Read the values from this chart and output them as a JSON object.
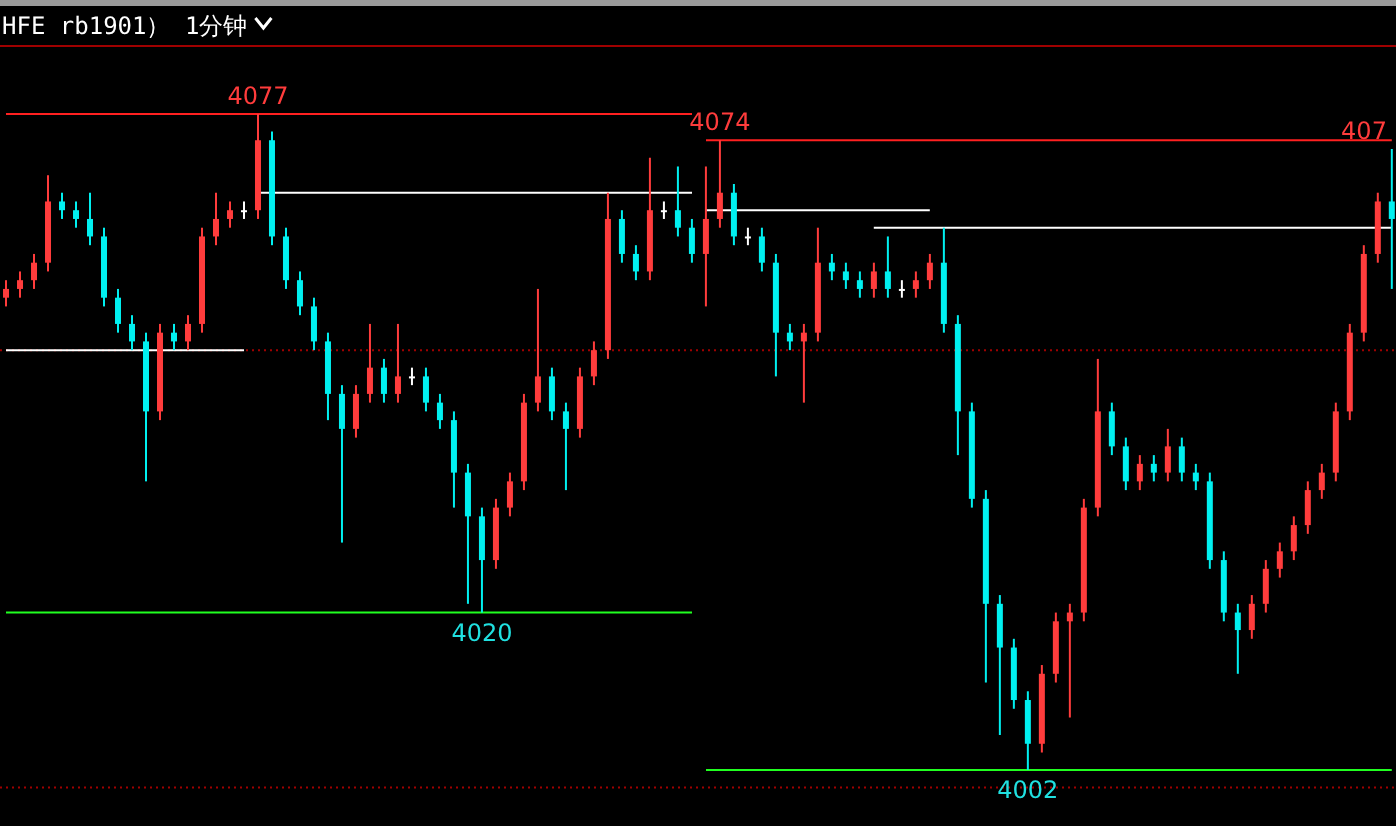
{
  "chart_data": {
    "type": "candlestick",
    "title": "HFE rb1901） 1分钟",
    "categories": [
      null,
      null,
      null,
      null,
      null,
      null,
      null,
      null,
      null,
      null,
      null,
      null,
      null,
      null,
      null,
      null,
      null,
      null,
      null,
      null,
      null,
      null,
      null,
      null,
      null,
      null,
      null,
      null,
      null,
      null,
      null,
      null,
      null,
      null,
      null,
      null,
      null,
      null,
      null,
      null,
      null,
      null,
      null,
      null,
      null,
      null,
      null,
      null,
      null,
      null,
      null,
      null,
      null,
      null,
      null,
      null,
      null,
      null,
      null,
      null,
      null,
      null,
      null,
      null,
      null,
      null,
      null,
      null,
      null,
      null,
      null,
      null,
      null,
      null,
      null,
      null,
      null,
      null,
      null,
      null,
      null,
      null,
      null,
      null,
      null,
      null,
      null,
      null,
      null,
      null,
      null,
      null,
      null,
      null,
      null,
      null,
      null,
      null,
      null,
      null
    ],
    "ohlc": [
      [
        4056,
        4058,
        4055,
        4057
      ],
      [
        4057,
        4059,
        4056,
        4058
      ],
      [
        4058,
        4061,
        4057,
        4060
      ],
      [
        4060,
        4070,
        4059,
        4067
      ],
      [
        4067,
        4068,
        4065,
        4066
      ],
      [
        4066,
        4067,
        4064,
        4065
      ],
      [
        4065,
        4068,
        4062,
        4063
      ],
      [
        4063,
        4064,
        4055,
        4056
      ],
      [
        4056,
        4057,
        4052,
        4053
      ],
      [
        4053,
        4054,
        4050,
        4051
      ],
      [
        4051,
        4052,
        4035,
        4043
      ],
      [
        4043,
        4053,
        4042,
        4052
      ],
      [
        4052,
        4053,
        4050,
        4051
      ],
      [
        4051,
        4054,
        4050,
        4053
      ],
      [
        4053,
        4064,
        4052,
        4063
      ],
      [
        4063,
        4068,
        4062,
        4065
      ],
      [
        4065,
        4067,
        4064,
        4066
      ],
      [
        4066,
        4067,
        4065,
        4066
      ],
      [
        4066,
        4077,
        4065,
        4074
      ],
      [
        4074,
        4075,
        4062,
        4063
      ],
      [
        4063,
        4064,
        4057,
        4058
      ],
      [
        4058,
        4059,
        4054,
        4055
      ],
      [
        4055,
        4056,
        4050,
        4051
      ],
      [
        4051,
        4052,
        4042,
        4045
      ],
      [
        4045,
        4046,
        4028,
        4041
      ],
      [
        4041,
        4046,
        4040,
        4045
      ],
      [
        4045,
        4053,
        4044,
        4048
      ],
      [
        4048,
        4049,
        4044,
        4045
      ],
      [
        4045,
        4053,
        4044,
        4047
      ],
      [
        4047,
        4048,
        4046,
        4047
      ],
      [
        4047,
        4048,
        4043,
        4044
      ],
      [
        4044,
        4045,
        4041,
        4042
      ],
      [
        4042,
        4043,
        4032,
        4036
      ],
      [
        4036,
        4037,
        4021,
        4031
      ],
      [
        4031,
        4032,
        4020,
        4026
      ],
      [
        4026,
        4033,
        4025,
        4032
      ],
      [
        4032,
        4036,
        4031,
        4035
      ],
      [
        4035,
        4045,
        4034,
        4044
      ],
      [
        4044,
        4057,
        4043,
        4047
      ],
      [
        4047,
        4048,
        4042,
        4043
      ],
      [
        4043,
        4044,
        4034,
        4041
      ],
      [
        4041,
        4048,
        4040,
        4047
      ],
      [
        4047,
        4051,
        4046,
        4050
      ],
      [
        4050,
        4068,
        4049,
        4065
      ],
      [
        4065,
        4066,
        4060,
        4061
      ],
      [
        4061,
        4062,
        4058,
        4059
      ],
      [
        4059,
        4072,
        4058,
        4066
      ],
      [
        4066,
        4067,
        4065,
        4066
      ],
      [
        4066,
        4071,
        4063,
        4064
      ],
      [
        4064,
        4065,
        4060,
        4061
      ],
      [
        4061,
        4071,
        4055,
        4065
      ],
      [
        4065,
        4074,
        4064,
        4068
      ],
      [
        4068,
        4069,
        4062,
        4063
      ],
      [
        4063,
        4064,
        4062,
        4063
      ],
      [
        4063,
        4064,
        4059,
        4060
      ],
      [
        4060,
        4061,
        4047,
        4052
      ],
      [
        4052,
        4053,
        4050,
        4051
      ],
      [
        4051,
        4053,
        4044,
        4052
      ],
      [
        4052,
        4064,
        4051,
        4060
      ],
      [
        4060,
        4061,
        4058,
        4059
      ],
      [
        4059,
        4060,
        4057,
        4058
      ],
      [
        4058,
        4059,
        4056,
        4057
      ],
      [
        4057,
        4060,
        4056,
        4059
      ],
      [
        4059,
        4063,
        4056,
        4057
      ],
      [
        4057,
        4058,
        4056,
        4057
      ],
      [
        4057,
        4059,
        4056,
        4058
      ],
      [
        4058,
        4061,
        4057,
        4060
      ],
      [
        4060,
        4064,
        4052,
        4053
      ],
      [
        4053,
        4054,
        4038,
        4043
      ],
      [
        4043,
        4044,
        4032,
        4033
      ],
      [
        4033,
        4034,
        4012,
        4021
      ],
      [
        4021,
        4022,
        4006,
        4016
      ],
      [
        4016,
        4017,
        4009,
        4010
      ],
      [
        4010,
        4011,
        4002,
        4005
      ],
      [
        4005,
        4014,
        4004,
        4013
      ],
      [
        4013,
        4020,
        4012,
        4019
      ],
      [
        4019,
        4021,
        4008,
        4020
      ],
      [
        4020,
        4033,
        4019,
        4032
      ],
      [
        4032,
        4049,
        4031,
        4043
      ],
      [
        4043,
        4044,
        4038,
        4039
      ],
      [
        4039,
        4040,
        4034,
        4035
      ],
      [
        4035,
        4038,
        4034,
        4037
      ],
      [
        4037,
        4038,
        4035,
        4036
      ],
      [
        4036,
        4041,
        4035,
        4039
      ],
      [
        4039,
        4040,
        4035,
        4036
      ],
      [
        4036,
        4037,
        4034,
        4035
      ],
      [
        4035,
        4036,
        4025,
        4026
      ],
      [
        4026,
        4027,
        4019,
        4020
      ],
      [
        4020,
        4021,
        4013,
        4018
      ],
      [
        4018,
        4022,
        4017,
        4021
      ],
      [
        4021,
        4026,
        4020,
        4025
      ],
      [
        4025,
        4028,
        4024,
        4027
      ],
      [
        4027,
        4031,
        4026,
        4030
      ],
      [
        4030,
        4035,
        4029,
        4034
      ],
      [
        4034,
        4037,
        4033,
        4036
      ],
      [
        4036,
        4044,
        4035,
        4043
      ],
      [
        4043,
        4053,
        4042,
        4052
      ],
      [
        4052,
        4062,
        4051,
        4061
      ],
      [
        4061,
        4068,
        4060,
        4067
      ],
      [
        4067,
        4073,
        4057,
        4065
      ]
    ],
    "series": [
      {
        "type": "line",
        "color": "#ff2020",
        "values": [
          4077,
          4077,
          4077,
          4077,
          4077,
          4077,
          4077,
          4077,
          4077,
          4077,
          4077,
          4077,
          4077,
          4077,
          4077,
          4077,
          4077,
          4077,
          4077,
          4077,
          4077,
          4077,
          4077,
          4077,
          4077,
          4077,
          4077,
          4077,
          4077,
          4077,
          4077,
          4077,
          4077,
          4077,
          4077,
          4077,
          4077,
          4077,
          4077,
          4077,
          4077,
          4077,
          4077,
          4077,
          4077,
          4077,
          4077,
          4077,
          4077,
          4077,
          null,
          null,
          null,
          null,
          null,
          null,
          null,
          null,
          null,
          null,
          null,
          null,
          null,
          null,
          null,
          null,
          null,
          null,
          null,
          null,
          null,
          null,
          null,
          null,
          null,
          null,
          null,
          null,
          null,
          null,
          null,
          null,
          null,
          null,
          null,
          null,
          null,
          null,
          null,
          null,
          null,
          null,
          null,
          null,
          null,
          null,
          null,
          null,
          null,
          null
        ]
      },
      {
        "type": "line",
        "color": "#ff2020",
        "values": [
          null,
          null,
          null,
          null,
          null,
          null,
          null,
          null,
          null,
          null,
          null,
          null,
          null,
          null,
          null,
          null,
          null,
          null,
          null,
          null,
          null,
          null,
          null,
          null,
          null,
          null,
          null,
          null,
          null,
          null,
          null,
          null,
          null,
          null,
          null,
          null,
          null,
          null,
          null,
          null,
          null,
          null,
          null,
          null,
          null,
          null,
          null,
          null,
          null,
          null,
          4074,
          4074,
          4074,
          4074,
          4074,
          4074,
          4074,
          4074,
          4074,
          4074,
          4074,
          4074,
          4074,
          4074,
          4074,
          4074,
          4074,
          4074,
          4074,
          4074,
          4074,
          4074,
          4074,
          4074,
          4074,
          4074,
          4074,
          4074,
          4074,
          4074,
          4074,
          4074,
          4074,
          4074,
          4074,
          4074,
          4074,
          4074,
          4074,
          4074,
          4074,
          4074,
          4074,
          4074,
          4074,
          4074,
          4074,
          4074,
          4074,
          4074
        ]
      },
      {
        "type": "line",
        "color": "#20ff20",
        "values": [
          4020,
          4020,
          4020,
          4020,
          4020,
          4020,
          4020,
          4020,
          4020,
          4020,
          4020,
          4020,
          4020,
          4020,
          4020,
          4020,
          4020,
          4020,
          4020,
          4020,
          4020,
          4020,
          4020,
          4020,
          4020,
          4020,
          4020,
          4020,
          4020,
          4020,
          4020,
          4020,
          4020,
          4020,
          4020,
          4020,
          4020,
          4020,
          4020,
          4020,
          4020,
          4020,
          4020,
          4020,
          4020,
          4020,
          4020,
          4020,
          4020,
          4020,
          null,
          null,
          null,
          null,
          null,
          null,
          null,
          null,
          null,
          null,
          null,
          null,
          null,
          null,
          null,
          null,
          null,
          null,
          null,
          null,
          null,
          null,
          null,
          null,
          null,
          null,
          null,
          null,
          null,
          null,
          null,
          null,
          null,
          null,
          null,
          null,
          null,
          null,
          null,
          null,
          null,
          null,
          null,
          null,
          null,
          null,
          null,
          null,
          null,
          null
        ]
      },
      {
        "type": "line",
        "color": "#20ff20",
        "values": [
          null,
          null,
          null,
          null,
          null,
          null,
          null,
          null,
          null,
          null,
          null,
          null,
          null,
          null,
          null,
          null,
          null,
          null,
          null,
          null,
          null,
          null,
          null,
          null,
          null,
          null,
          null,
          null,
          null,
          null,
          null,
          null,
          null,
          null,
          null,
          null,
          null,
          null,
          null,
          null,
          null,
          null,
          null,
          null,
          null,
          null,
          null,
          null,
          null,
          null,
          4002,
          4002,
          4002,
          4002,
          4002,
          4002,
          4002,
          4002,
          4002,
          4002,
          4002,
          4002,
          4002,
          4002,
          4002,
          4002,
          4002,
          4002,
          4002,
          4002,
          4002,
          4002,
          4002,
          4002,
          4002,
          4002,
          4002,
          4002,
          4002,
          4002,
          4002,
          4002,
          4002,
          4002,
          4002,
          4002,
          4002,
          4002,
          4002,
          4002,
          4002,
          4002,
          4002,
          4002,
          4002,
          4002,
          4002,
          4002,
          4002,
          4002
        ]
      },
      {
        "type": "line",
        "color": "#ffffff",
        "values": [
          4050,
          4050,
          4050,
          4050,
          4050,
          4050,
          4050,
          4050,
          4050,
          4050,
          4050,
          4050,
          4050,
          4050,
          4050,
          4050,
          4050,
          4050,
          null,
          null,
          null,
          null,
          null,
          null,
          null,
          null,
          null,
          null,
          null,
          null,
          null,
          null,
          null,
          null,
          null,
          null,
          null,
          null,
          null,
          null,
          null,
          null,
          null,
          null,
          null,
          null,
          null,
          null,
          null,
          null,
          null,
          null,
          null,
          null,
          null,
          null,
          null,
          null,
          null,
          null,
          null,
          null,
          null,
          null,
          null,
          null,
          null,
          null,
          null,
          null,
          null,
          null,
          null,
          null,
          null,
          null,
          null,
          null,
          null,
          null,
          null,
          null,
          null,
          null,
          null,
          null,
          null,
          null,
          null,
          null,
          null,
          null,
          null,
          null,
          null,
          null,
          null,
          null,
          null,
          null
        ]
      },
      {
        "type": "line",
        "color": "#ffffff",
        "values": [
          null,
          null,
          null,
          null,
          null,
          null,
          null,
          null,
          null,
          null,
          null,
          null,
          null,
          null,
          null,
          null,
          null,
          null,
          4068,
          4068,
          4068,
          4068,
          4068,
          4068,
          4068,
          4068,
          4068,
          4068,
          4068,
          4068,
          4068,
          4068,
          4068,
          4068,
          4068,
          4068,
          4068,
          4068,
          4068,
          4068,
          4068,
          4068,
          4068,
          4068,
          4068,
          4068,
          4068,
          4068,
          4068,
          4068,
          null,
          null,
          null,
          null,
          null,
          null,
          null,
          null,
          null,
          null,
          null,
          null,
          null,
          null,
          null,
          null,
          null,
          null,
          null,
          null,
          null,
          null,
          null,
          null,
          null,
          null,
          null,
          null,
          null,
          null,
          null,
          null,
          null,
          null,
          null,
          null,
          null,
          null,
          null,
          null,
          null,
          null,
          null,
          null,
          null,
          null,
          null,
          null,
          null,
          null
        ]
      },
      {
        "type": "line",
        "color": "#ffffff",
        "values": [
          null,
          null,
          null,
          null,
          null,
          null,
          null,
          null,
          null,
          null,
          null,
          null,
          null,
          null,
          null,
          null,
          null,
          null,
          null,
          null,
          null,
          null,
          null,
          null,
          null,
          null,
          null,
          null,
          null,
          null,
          null,
          null,
          null,
          null,
          null,
          null,
          null,
          null,
          null,
          null,
          null,
          null,
          null,
          null,
          null,
          null,
          null,
          null,
          null,
          null,
          4066,
          4066,
          4066,
          4066,
          4066,
          4066,
          4066,
          4066,
          4066,
          4066,
          4066,
          4066,
          4066,
          4066,
          4066,
          4066,
          4066,
          null,
          null,
          null,
          null,
          null,
          null,
          null,
          null,
          null,
          null,
          null,
          null,
          null,
          null,
          null,
          null,
          null,
          null,
          null,
          null,
          null,
          null,
          null,
          null,
          null,
          null,
          null,
          null,
          null,
          null,
          null,
          null,
          null
        ]
      },
      {
        "type": "line",
        "color": "#ffffff",
        "values": [
          null,
          null,
          null,
          null,
          null,
          null,
          null,
          null,
          null,
          null,
          null,
          null,
          null,
          null,
          null,
          null,
          null,
          null,
          null,
          null,
          null,
          null,
          null,
          null,
          null,
          null,
          null,
          null,
          null,
          null,
          null,
          null,
          null,
          null,
          null,
          null,
          null,
          null,
          null,
          null,
          null,
          null,
          null,
          null,
          null,
          null,
          null,
          null,
          null,
          null,
          null,
          null,
          null,
          null,
          null,
          null,
          null,
          null,
          null,
          null,
          null,
          null,
          4064,
          4064,
          4064,
          4064,
          4064,
          4064,
          4064,
          4064,
          4064,
          4064,
          4064,
          4064,
          4064,
          4064,
          4064,
          4064,
          4064,
          4064,
          4064,
          4064,
          4064,
          4064,
          4064,
          4064,
          4064,
          4064,
          4064,
          4064,
          4064,
          4064,
          4064,
          4064,
          4064,
          4064,
          4064,
          4064,
          4064,
          4064
        ]
      }
    ],
    "annotations": [
      {
        "text": "4077",
        "y": 4077
      },
      {
        "text": "4074",
        "y": 4074
      },
      {
        "text": "407",
        "y": 4073
      },
      {
        "text": "4020",
        "y": 4020
      },
      {
        "text": "4002",
        "y": 4002
      }
    ],
    "yticks": [
      {
        "value": 4000,
        "label": null
      },
      {
        "value": 4050,
        "label": null
      }
    ],
    "grid": "y"
  }
}
